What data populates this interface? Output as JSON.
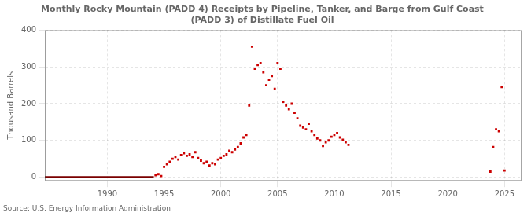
{
  "chart_data": {
    "type": "scatter",
    "title": "Monthly Rocky Mountain (PADD 4) Receipts by Pipeline, Tanker, and Barge from Gulf Coast\n(PADD 3) of Distillate Fuel Oil",
    "y_label": "Thousand Barrels",
    "source": "Source: U.S. Energy Information Administration",
    "xlim": [
      1984.5,
      2026.5
    ],
    "ylim": [
      -10,
      400
    ],
    "xticks": [
      1990,
      1995,
      2000,
      2005,
      2010,
      2015,
      2020,
      2025
    ],
    "yticks": [
      0,
      100,
      200,
      300,
      400
    ],
    "grid": true,
    "series": [
      {
        "type": "line",
        "color": "#7a0000",
        "line_style": "solid",
        "x": [
          1984.5,
          1994.1
        ],
        "values": [
          0,
          0
        ]
      },
      {
        "type": "scatter",
        "color": "#cc0000",
        "marker": "square",
        "x": [
          1994.25,
          1994.5,
          1994.75,
          1995.0,
          1995.25,
          1995.5,
          1995.75,
          1996.0,
          1996.25,
          1996.5,
          1996.75,
          1997.0,
          1997.25,
          1997.5,
          1997.75,
          1998.0,
          1998.25,
          1998.5,
          1998.75,
          1999.0,
          1999.25,
          1999.5,
          1999.75,
          2000.0,
          2000.25,
          2000.5,
          2000.75,
          2001.0,
          2001.25,
          2001.5,
          2001.75,
          2002.0,
          2002.25,
          2002.5,
          2002.75,
          2003.0,
          2003.25,
          2003.5,
          2003.75,
          2004.0,
          2004.25,
          2004.5,
          2004.75,
          2005.0,
          2005.25,
          2005.5,
          2005.75,
          2006.0,
          2006.25,
          2006.5,
          2006.75,
          2007.0,
          2007.25,
          2007.5,
          2007.75,
          2008.0,
          2008.25,
          2008.5,
          2008.75,
          2009.0,
          2009.25,
          2009.5,
          2009.75,
          2010.0,
          2010.25,
          2010.5,
          2010.75,
          2011.0,
          2011.25,
          2023.75,
          2024.0,
          2024.25,
          2024.5,
          2024.75,
          2025.0
        ],
        "values": [
          5,
          8,
          3,
          28,
          35,
          42,
          50,
          55,
          48,
          60,
          65,
          58,
          62,
          55,
          68,
          52,
          45,
          38,
          42,
          32,
          38,
          35,
          48,
          52,
          58,
          62,
          72,
          68,
          75,
          82,
          92,
          108,
          115,
          195,
          355,
          295,
          305,
          310,
          285,
          250,
          265,
          275,
          240,
          310,
          295,
          205,
          195,
          185,
          200,
          175,
          160,
          140,
          135,
          130,
          145,
          125,
          115,
          105,
          100,
          85,
          95,
          100,
          110,
          115,
          120,
          108,
          102,
          95,
          88,
          15,
          82,
          130,
          125,
          245,
          18
        ]
      }
    ]
  }
}
